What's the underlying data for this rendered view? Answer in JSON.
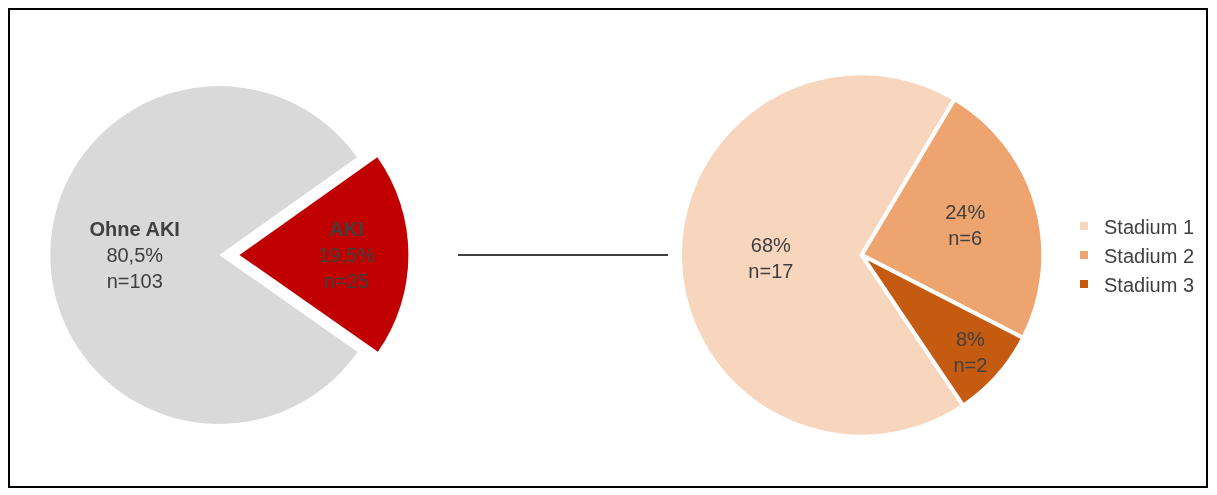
{
  "chart_data": [
    {
      "type": "pie",
      "categories": [
        "Ohne AKI",
        "AKI"
      ],
      "values": [
        103,
        25
      ],
      "value_labels": [
        "80,5%\nn=103",
        "19,5%\nn=25"
      ],
      "colors": [
        "#d9d9d9",
        "#c00000"
      ],
      "legend": false
    },
    {
      "type": "pie",
      "categories": [
        "Stadium 1",
        "Stadium 2",
        "Stadium 3"
      ],
      "values": [
        17,
        6,
        2
      ],
      "value_labels": [
        "68%\nn=17",
        "24%\nn=6",
        "8%\nn=2"
      ],
      "colors": [
        "#f8d5bd",
        "#eea46f",
        "#c55a11"
      ],
      "legend": "right"
    }
  ]
}
